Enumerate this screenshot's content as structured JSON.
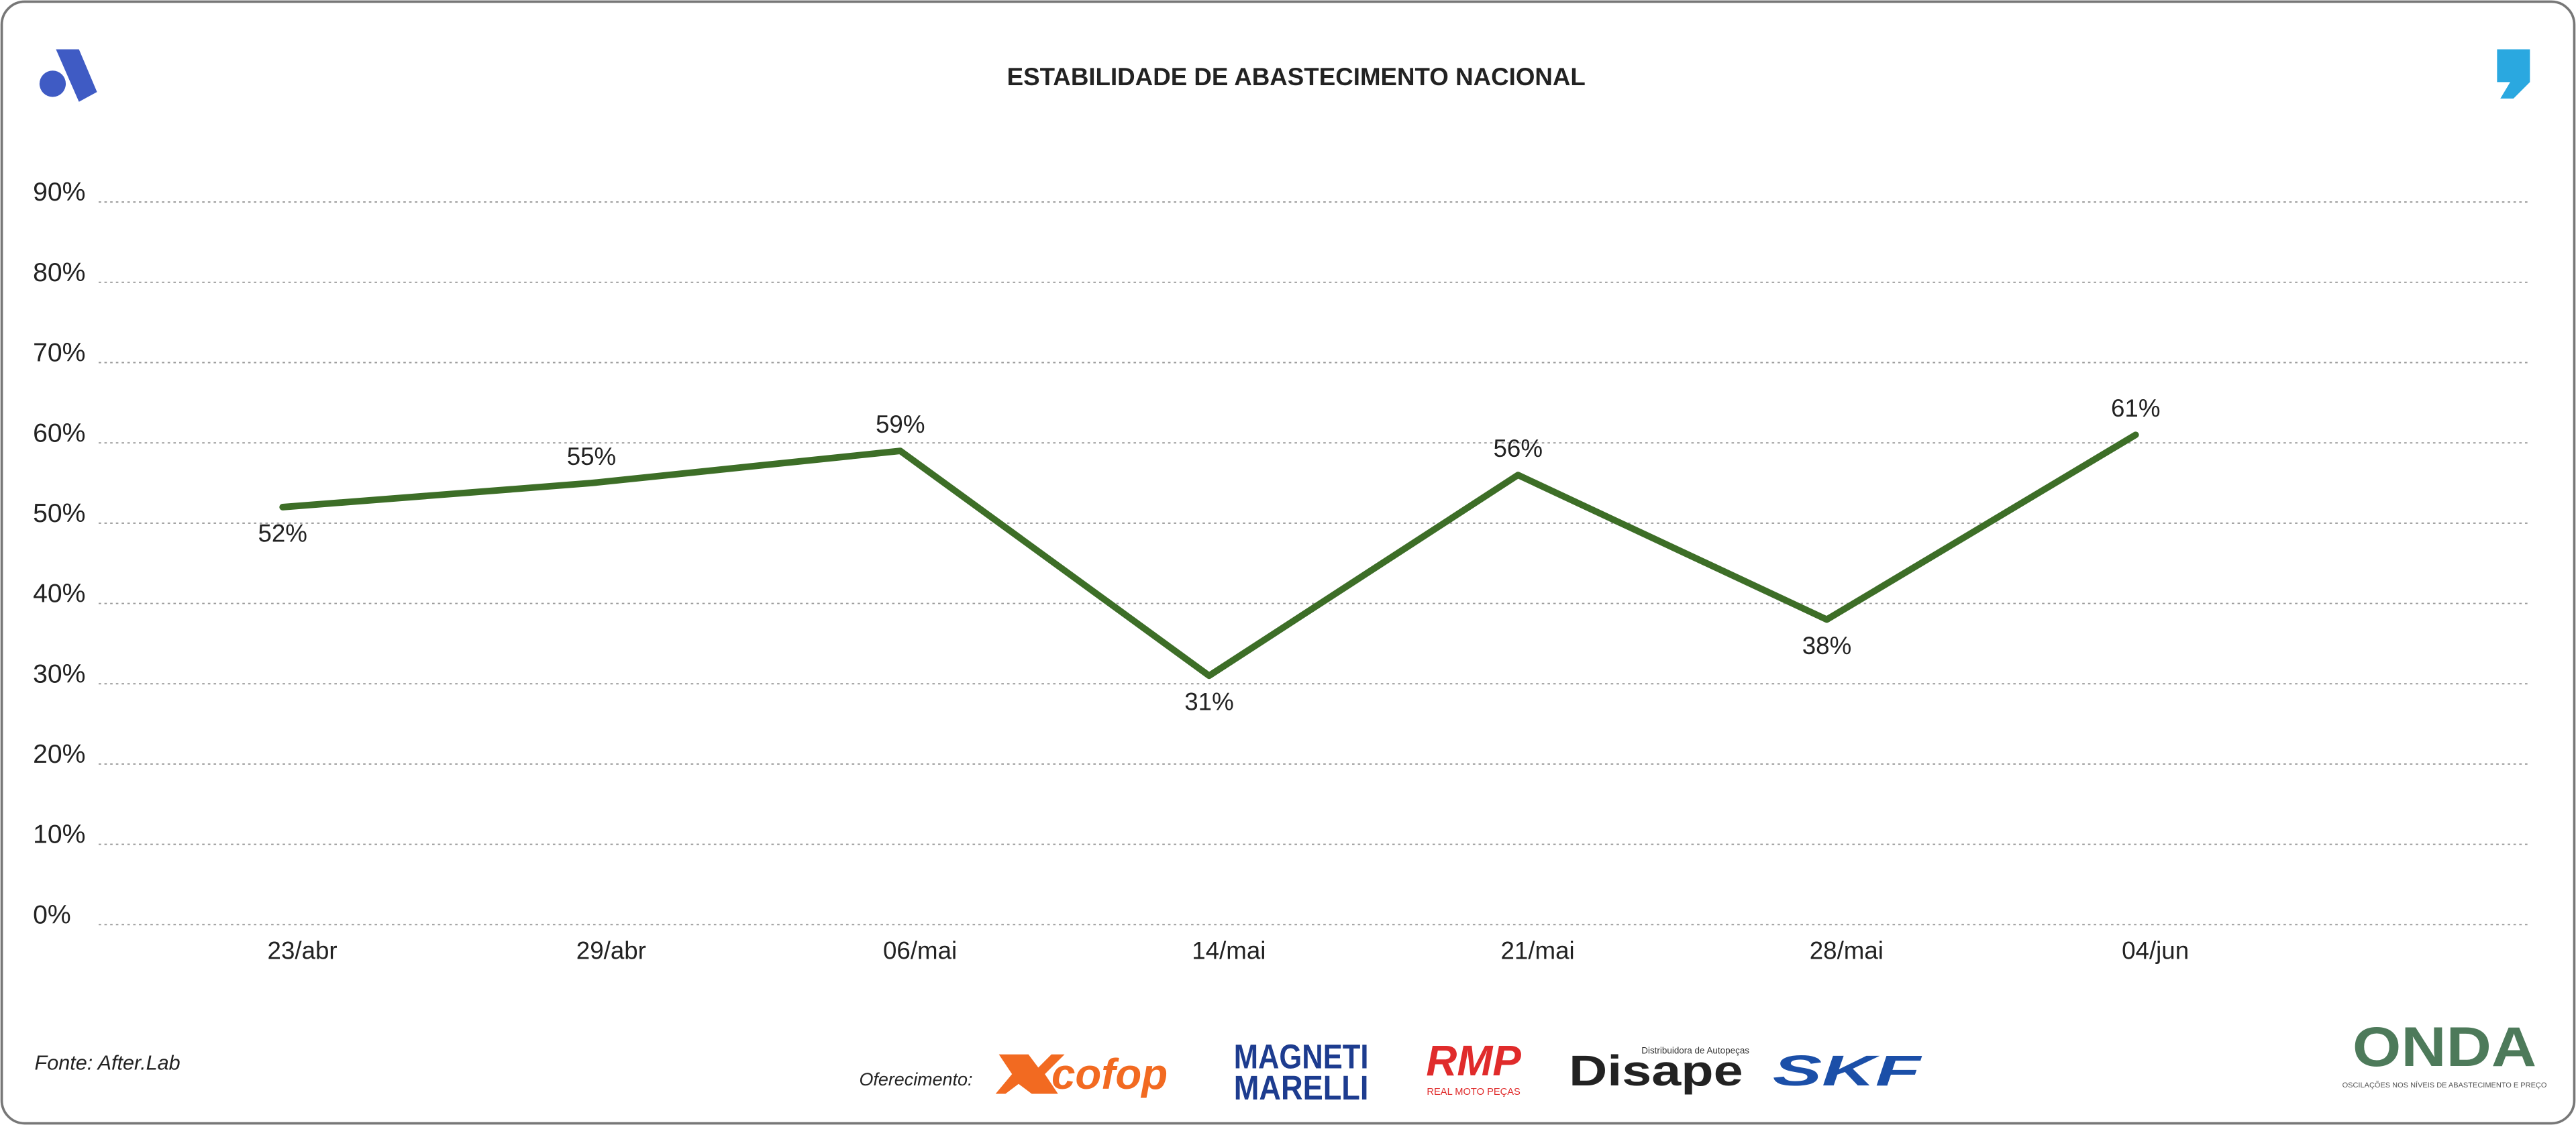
{
  "chart_data": {
    "type": "line",
    "title": "ESTABILIDADE DE ABASTECIMENTO NACIONAL",
    "categories": [
      "23/abr",
      "29/abr",
      "06/mai",
      "14/mai",
      "21/mai",
      "28/mai",
      "04/jun"
    ],
    "series": [
      {
        "color": "#3d6e27",
        "values": [
          52,
          55,
          59,
          31,
          56,
          38,
          61
        ],
        "value_labels": [
          "52%",
          "55%",
          "59%",
          "31%",
          "56%",
          "38%",
          "61%"
        ]
      }
    ],
    "ylim": [
      0,
      90
    ],
    "yticks": [
      {
        "value": 0,
        "label": "0%"
      },
      {
        "value": 10,
        "label": "10%"
      },
      {
        "value": 20,
        "label": "20%"
      },
      {
        "value": 30,
        "label": "30%"
      },
      {
        "value": 40,
        "label": "40%"
      },
      {
        "value": 50,
        "label": "50%"
      },
      {
        "value": 60,
        "label": "60%"
      },
      {
        "value": 70,
        "label": "70%"
      },
      {
        "value": 80,
        "label": "80%"
      },
      {
        "value": 90,
        "label": "90%"
      }
    ],
    "grid": true
  },
  "footer": {
    "source": "Fonte: After.Lab",
    "sponsor_label": "Oferecimento:",
    "sponsors": [
      "cofop",
      "MAGNETI",
      "MARELLI",
      "RMP",
      "REAL MOTO PEÇAS",
      "Distribuidora de Autopeças",
      "Disape",
      "SKF"
    ],
    "brand": "ONDA",
    "brand_tagline": "OSCILAÇÕES NOS NÍVEIS DE ABASTECIMENTO E PREÇO"
  }
}
